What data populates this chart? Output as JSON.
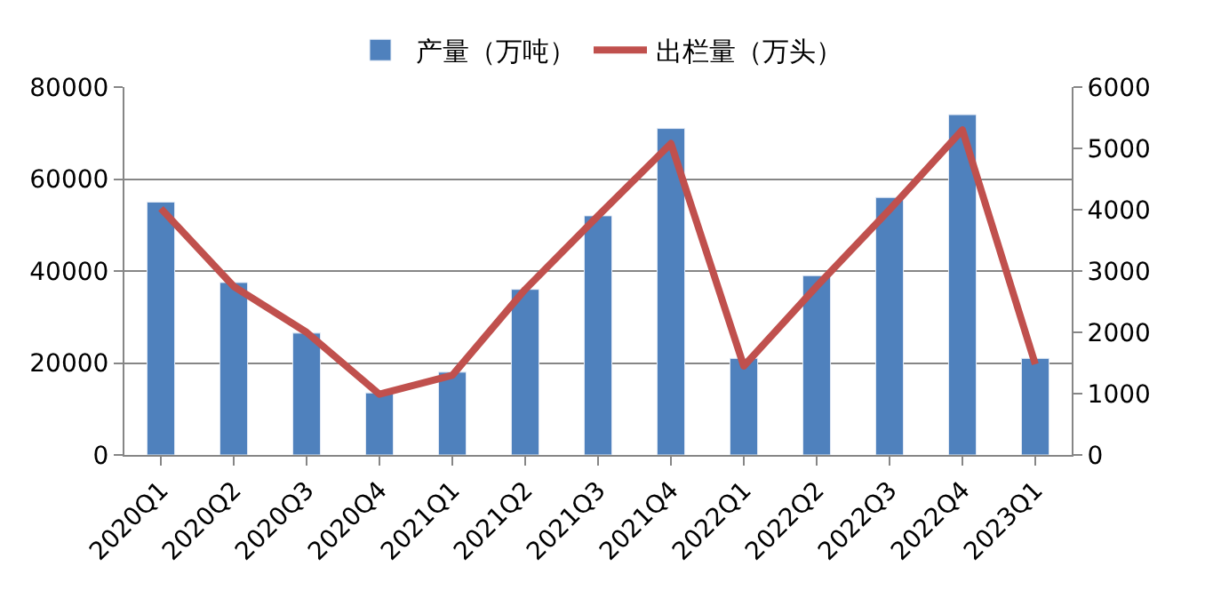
{
  "chart_data": {
    "type": "bar",
    "categories": [
      "2020Q1",
      "2020Q2",
      "2020Q3",
      "2020Q4",
      "2021Q1",
      "2021Q2",
      "2021Q3",
      "2021Q4",
      "2022Q1",
      "2022Q2",
      "2022Q3",
      "2022Q4",
      "2023Q1"
    ],
    "series": [
      {
        "name": "产量（万吨）",
        "color": "#4f81bd",
        "values": [
          55000,
          37500,
          26500,
          13500,
          18000,
          36000,
          52000,
          71000,
          21000,
          39000,
          56000,
          74000,
          21000
        ]
      },
      {
        "name": "出栏量（万头）",
        "type": "line",
        "axis": "y2",
        "color": "#c0504d",
        "values": [
          4020,
          2750,
          2000,
          990,
          1300,
          2700,
          3900,
          5080,
          1450,
          2750,
          4000,
          5300,
          1480
        ]
      }
    ],
    "ylim": [
      0,
      80000
    ],
    "yticks": [
      0,
      20000,
      40000,
      60000,
      80000
    ],
    "y2lim": [
      0,
      6000
    ],
    "y2ticks": [
      0,
      1000,
      2000,
      3000,
      4000,
      5000,
      6000
    ],
    "grid": "y",
    "legend": "top",
    "marker": "none",
    "line_style": "solid"
  }
}
